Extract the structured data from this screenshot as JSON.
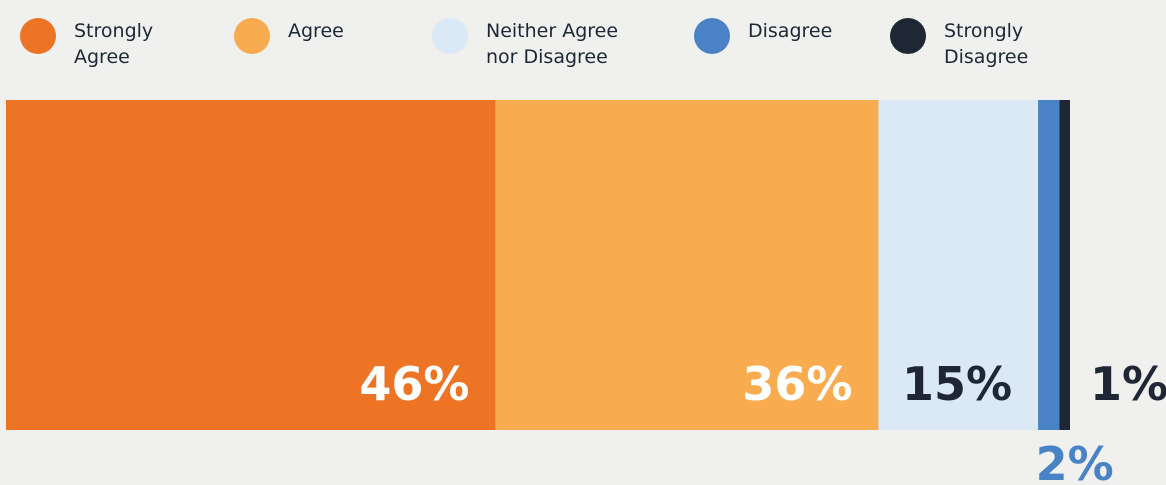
{
  "chart_data": {
    "type": "bar",
    "orientation": "horizontal-stacked",
    "title": "",
    "xlabel": "",
    "ylabel": "",
    "legend_position": "top",
    "grid": false,
    "categories": [
      "Strongly Agree",
      "Agree",
      "Neither Agree nor Disagree",
      "Disagree",
      "Strongly Disagree"
    ],
    "values": [
      46,
      36,
      15,
      2,
      1
    ],
    "value_labels": [
      "46%",
      "36%",
      "15%",
      "2%",
      "1%"
    ],
    "colors": [
      "#ed7424",
      "#f9ab4f",
      "#dbe9f6",
      "#4a82c6",
      "#1e2733"
    ],
    "label_colors": [
      "#ffffff",
      "#ffffff",
      "#1e2733",
      "#4a82c6",
      "#1e2733"
    ]
  },
  "legend": {
    "items": [
      {
        "label": "Strongly\nAgree",
        "color": "#ed7424"
      },
      {
        "label": "Agree",
        "color": "#f9ab4f"
      },
      {
        "label": "Neither Agree\nnor Disagree",
        "color": "#dbe9f6"
      },
      {
        "label": "Disagree",
        "color": "#4a82c6"
      },
      {
        "label": "Strongly\nDisagree",
        "color": "#1e2733"
      }
    ]
  }
}
